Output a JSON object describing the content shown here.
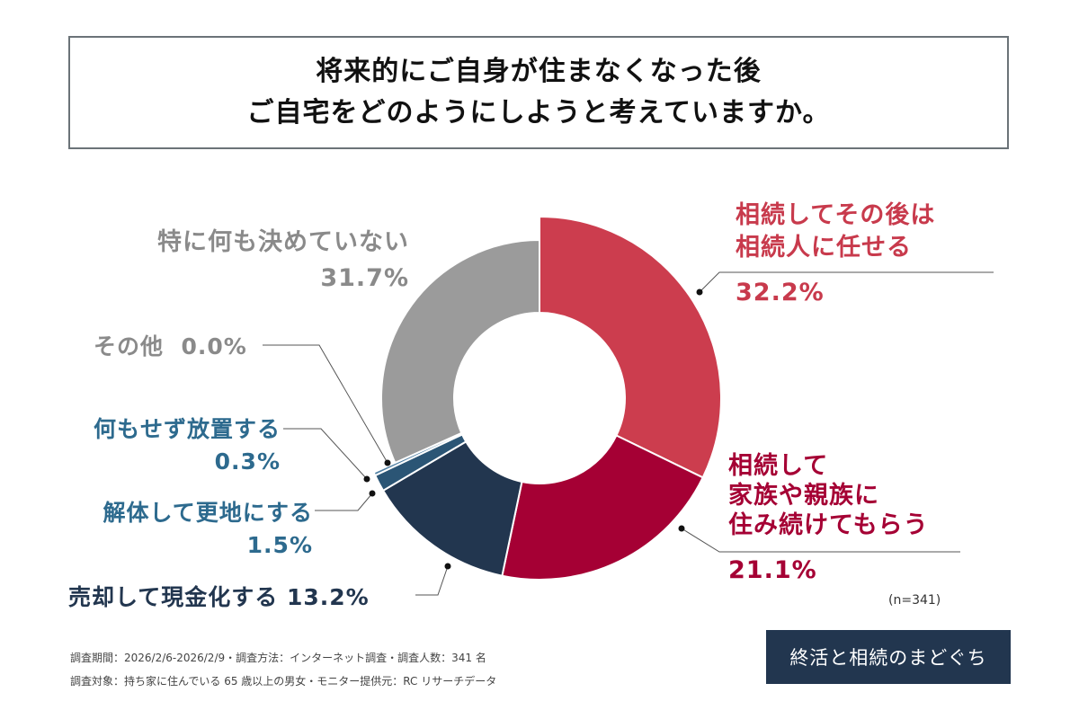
{
  "title": {
    "line1": "将来的にご自身が住まなくなった後",
    "line2": "ご自宅をどのようにしようと考えていますか。"
  },
  "chart_data": {
    "type": "pie",
    "donut": true,
    "start": "top, clockwise",
    "slices": [
      {
        "label": "相続してその後は相続人に任せる",
        "lines": [
          "相続してその後は",
          "相続人に任せる"
        ],
        "value": 32.2,
        "value_label": "32.2%",
        "color": "#cc3d4e",
        "text_color": "#c83a4c"
      },
      {
        "label": "相続して家族や親族に住み続けてもらう",
        "lines": [
          "相続して",
          "家族や親族に",
          "住み続けてもらう"
        ],
        "value": 21.1,
        "value_label": "21.1%",
        "color": "#a50034",
        "text_color": "#a50034"
      },
      {
        "label": "売却して現金化する",
        "lines": [
          "売却して現金化する"
        ],
        "value": 13.2,
        "value_label": "13.2%",
        "color": "#22364f",
        "text_color": "#22364f"
      },
      {
        "label": "解体して更地にする",
        "lines": [
          "解体して更地にする"
        ],
        "value": 1.5,
        "value_label": "1.5%",
        "color": "#2b5575",
        "text_color": "#2d6a8e"
      },
      {
        "label": "何もせず放置する",
        "lines": [
          "何もせず放置する"
        ],
        "value": 0.3,
        "value_label": "0.3%",
        "color": "#4f7fa3",
        "text_color": "#2d6a8e"
      },
      {
        "label": "その他",
        "lines": [
          "その他"
        ],
        "value": 0.0,
        "value_label": "0.0%",
        "color": "#7a7a7a",
        "text_color": "#8a8a8a"
      },
      {
        "label": "特に何も決めていない",
        "lines": [
          "特に何も決めていない"
        ],
        "value": 31.7,
        "value_label": "31.7%",
        "color": "#9b9b9b",
        "text_color": "#8a8a8a"
      }
    ]
  },
  "sample_note": "(n=341)",
  "footer": {
    "line1": "調査期間：2026/2/6-2026/2/9・調査方法：インターネット調査・調査人数：341 名",
    "line2": "調査対象：持ち家に住んでいる 65 歳以上の男女・モニター提供元：RC リサーチデータ"
  },
  "logo": {
    "text": "終活と相続のまどぐち"
  }
}
